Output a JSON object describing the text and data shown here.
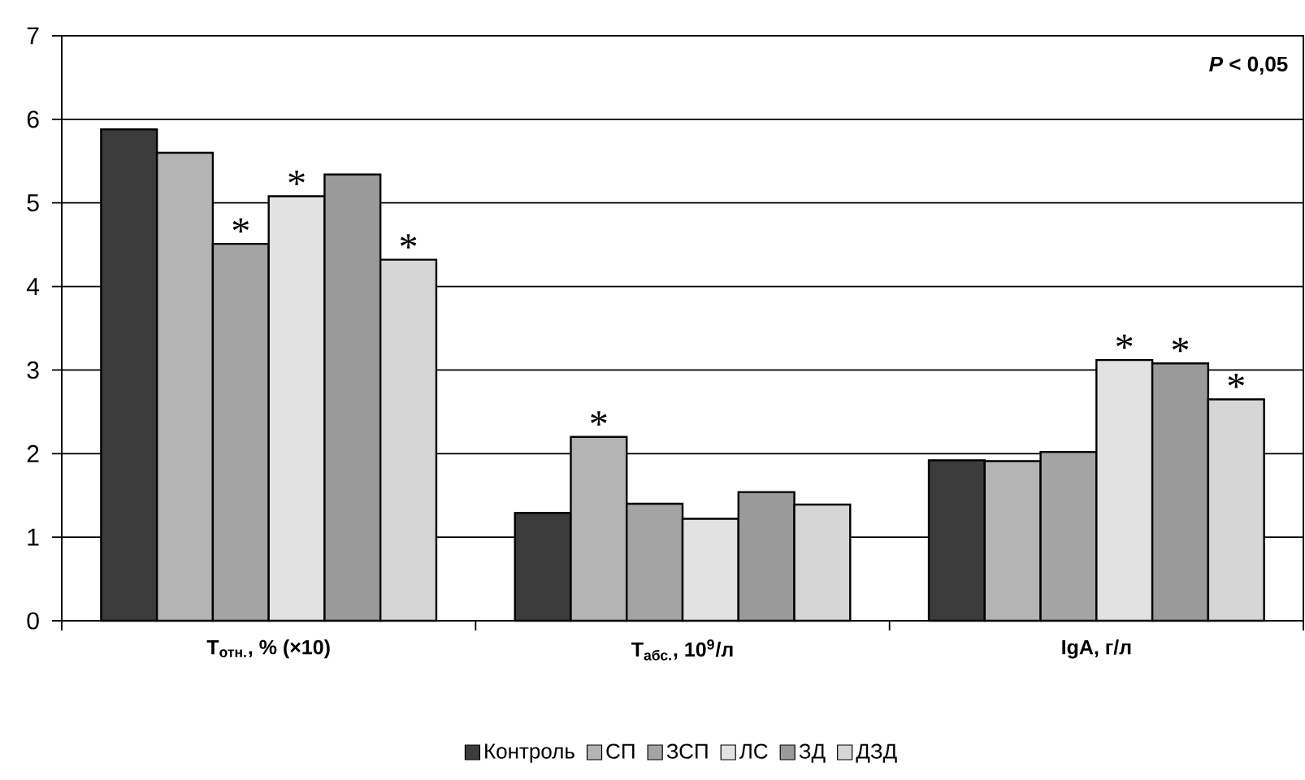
{
  "chart_data": {
    "type": "bar",
    "categories": [
      "Т$_{отн.}$, % (×10)",
      "Т$_{абс.}$, 10$^{9}$/л",
      "IgA, г/л"
    ],
    "series": [
      {
        "name": "Контроль",
        "color": "#3c3c3c",
        "values": [
          5.88,
          1.29,
          1.92
        ]
      },
      {
        "name": "СП",
        "color": "#b4b4b4",
        "values": [
          5.6,
          2.2,
          1.91
        ]
      },
      {
        "name": "ЗСП",
        "color": "#a4a4a4",
        "values": [
          4.51,
          1.4,
          2.02
        ]
      },
      {
        "name": "ЛС",
        "color": "#e2e2e2",
        "values": [
          5.08,
          1.22,
          3.12
        ]
      },
      {
        "name": "ЗД",
        "color": "#9a9a9a",
        "values": [
          5.34,
          1.54,
          3.08
        ]
      },
      {
        "name": "ДЗД",
        "color": "#d6d6d6",
        "values": [
          4.32,
          1.39,
          2.65
        ]
      }
    ],
    "ylim": [
      0,
      7
    ],
    "yticks": [
      0,
      1,
      2,
      3,
      4,
      5,
      6,
      7
    ],
    "grid": "y",
    "legend": "bottom",
    "annotations": [
      "*P* < 0,05",
      {
        "text": "*",
        "x": "Т$_{отн.}$, % (×10)",
        "y": 4.51
      },
      {
        "text": "*",
        "x": "Т$_{отн.}$, % (×10)",
        "y": 5.08
      },
      {
        "text": "*",
        "y": 4.32
      },
      {
        "text": "*",
        "y": 2.2
      },
      {
        "text": "*",
        "x": "IgA, г/л",
        "y": 3.12
      },
      {
        "text": "*",
        "x": "IgA, г/л",
        "y": 3.08
      },
      {
        "text": "*",
        "y": 2.65
      }
    ]
  }
}
